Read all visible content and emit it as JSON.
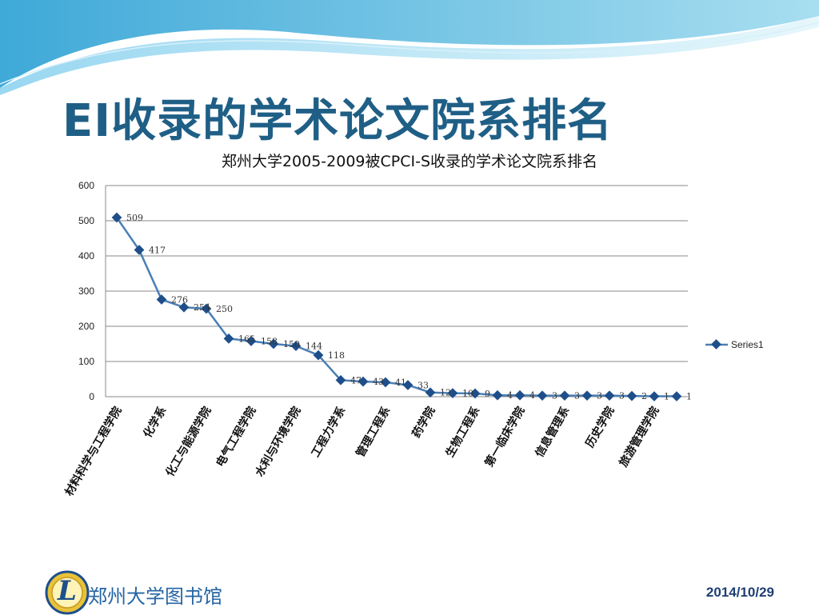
{
  "slide": {
    "title": "EI收录的学术论文院系排名",
    "footer_org": "郑州大学图书馆",
    "footer_date": "2014/10/29",
    "logo_letter": "L"
  },
  "colors": {
    "line": "#4a7fb5",
    "marker": "#1f4f8a",
    "title": "#1f5f86",
    "grid": "#888888"
  },
  "chart_data": {
    "type": "line",
    "title": "郑州大学2005-2009被CPCI-S收录的学术论文院系排名",
    "xlabel": "",
    "ylabel": "",
    "ylim": [
      0,
      600
    ],
    "yticks": [
      0,
      100,
      200,
      300,
      400,
      500,
      600
    ],
    "grid": true,
    "legend": "right",
    "categories": [
      "材料科学与工程学院",
      "",
      "化学系",
      "",
      "化工与能源学院",
      "",
      "电气工程学院",
      "",
      "水利与环境学院",
      "",
      "工程力学系",
      "",
      "管理工程系",
      "",
      "药学院",
      "",
      "生物工程系",
      "",
      "第一临床学院",
      "",
      "信息管理系",
      "",
      "历史学院",
      "",
      "旅游管理学院",
      ""
    ],
    "series": [
      {
        "name": "Series1",
        "values": [
          509,
          417,
          276,
          254,
          250,
          165,
          158,
          150,
          144,
          118,
          47,
          43,
          41,
          33,
          12,
          10,
          9,
          4,
          4,
          3,
          3,
          3,
          3,
          2,
          1,
          1
        ]
      }
    ]
  }
}
